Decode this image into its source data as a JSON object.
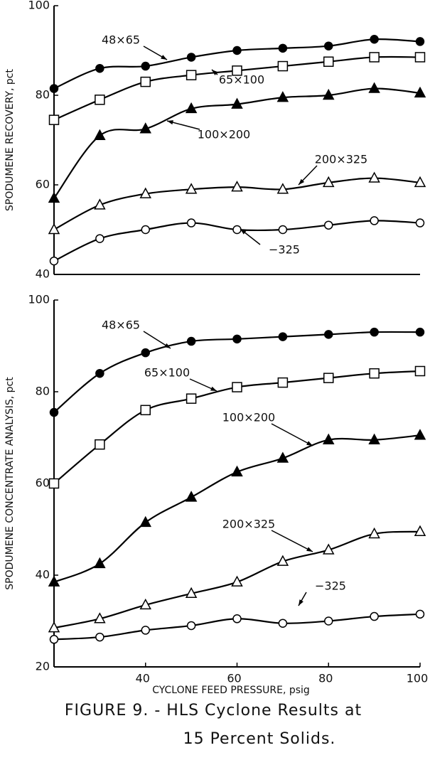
{
  "chart_data": [
    {
      "type": "line",
      "ylabel": "SPODUMENE RECOVERY, pct",
      "x": [
        20,
        30,
        40,
        50,
        60,
        70,
        80,
        90,
        100
      ],
      "xlim": [
        20,
        100
      ],
      "ylim": [
        40,
        100
      ],
      "yticks": [
        40,
        60,
        80,
        100
      ],
      "series": [
        {
          "name": "48×65",
          "marker": "filled-circle",
          "color": "#000000",
          "values": [
            81.5,
            86,
            86.5,
            88.5,
            90,
            90.5,
            91,
            92.5,
            92
          ]
        },
        {
          "name": "65×100",
          "marker": "open-square",
          "color": "#000000",
          "values": [
            74.5,
            79,
            83,
            84.5,
            85.5,
            86.5,
            87.5,
            88.5,
            88.5
          ]
        },
        {
          "name": "100×200",
          "marker": "filled-triangle",
          "color": "#000000",
          "values": [
            57,
            71,
            72.5,
            77,
            78,
            79.5,
            80,
            81.5,
            80.5
          ]
        },
        {
          "name": "200×325",
          "marker": "open-triangle",
          "color": "#000000",
          "values": [
            50,
            55.5,
            58,
            59,
            59.5,
            59,
            60.5,
            61.5,
            60.5
          ]
        },
        {
          "name": "−325",
          "marker": "open-circle",
          "color": "#000000",
          "values": [
            43,
            48,
            50,
            51.5,
            50,
            50,
            51,
            52,
            51.5
          ]
        }
      ]
    },
    {
      "type": "line",
      "ylabel": "SPODUMENE CONCENTRATE ANALYSIS, pct",
      "xlabel": "CYCLONE FEED PRESSURE, psig",
      "x": [
        20,
        30,
        40,
        50,
        60,
        70,
        80,
        90,
        100
      ],
      "xlim": [
        20,
        100
      ],
      "xticks": [
        40,
        60,
        80,
        100
      ],
      "ylim": [
        20,
        100
      ],
      "yticks": [
        20,
        40,
        60,
        80,
        100
      ],
      "series": [
        {
          "name": "48×65",
          "marker": "filled-circle",
          "color": "#000000",
          "values": [
            75.5,
            84,
            88.5,
            91,
            91.5,
            92,
            92.5,
            93,
            93
          ]
        },
        {
          "name": "65×100",
          "marker": "open-square",
          "color": "#000000",
          "values": [
            60,
            68.5,
            76,
            78.5,
            81,
            82,
            83,
            84,
            84.5
          ]
        },
        {
          "name": "100×200",
          "marker": "filled-triangle",
          "color": "#000000",
          "values": [
            38.5,
            42.5,
            51.5,
            57,
            62.5,
            65.5,
            69.5,
            69.5,
            70.5
          ]
        },
        {
          "name": "200×325",
          "marker": "open-triangle",
          "color": "#000000",
          "values": [
            28.5,
            30.5,
            33.5,
            36,
            38.5,
            43,
            45.5,
            49,
            49.5
          ]
        },
        {
          "name": "−325",
          "marker": "open-circle",
          "color": "#000000",
          "values": [
            26,
            26.5,
            28,
            29,
            30.5,
            29.5,
            30,
            31,
            31.5
          ]
        }
      ]
    }
  ],
  "caption": [
    "FIGURE 9. - HLS Cyclone Results at",
    "15 Percent Solids."
  ]
}
